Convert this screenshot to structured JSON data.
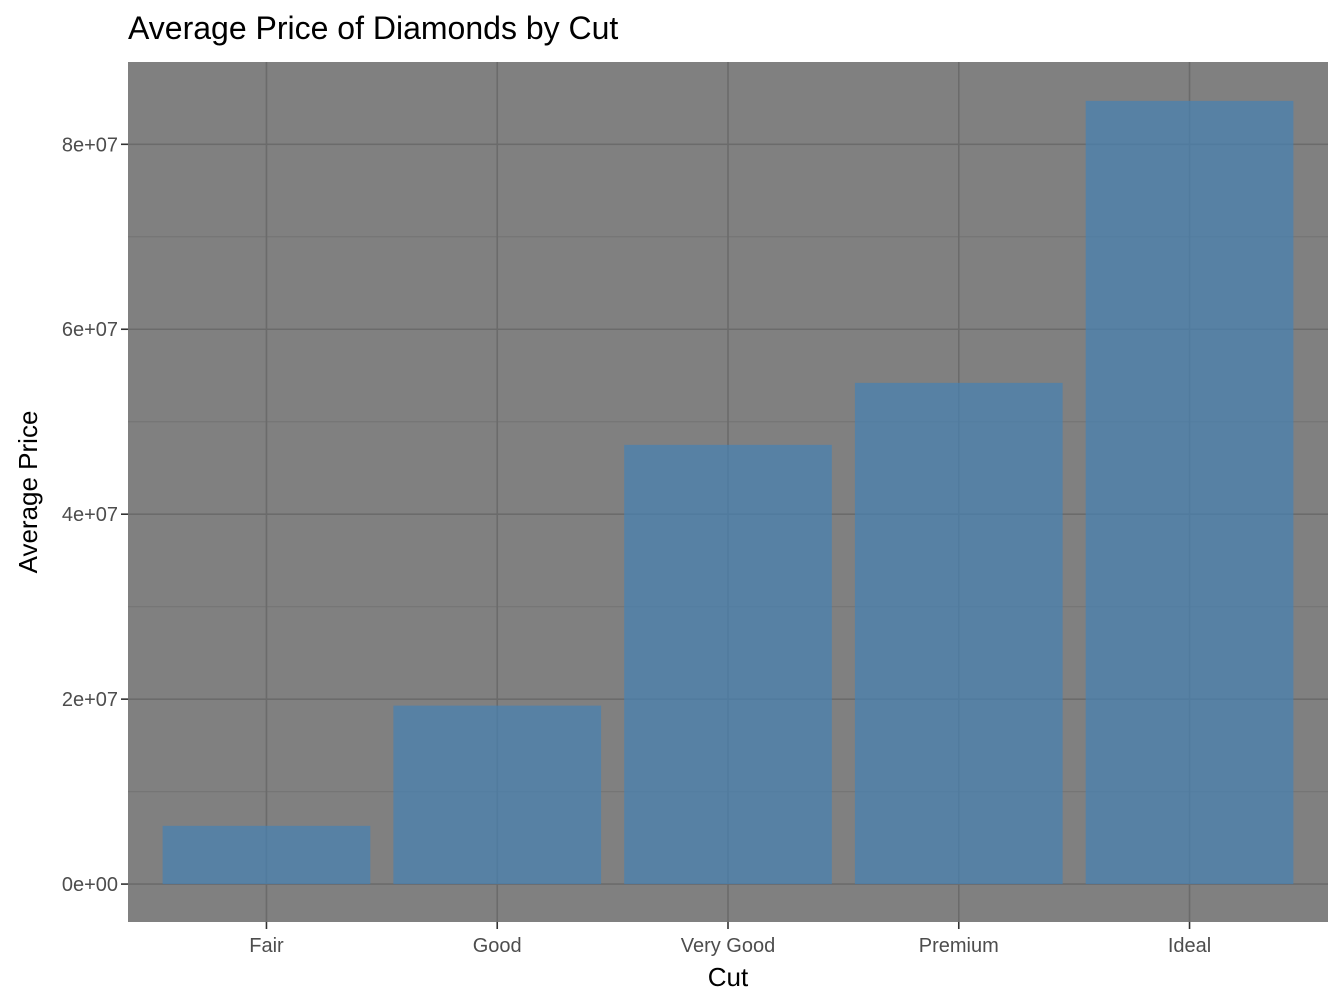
{
  "chart_data": {
    "type": "bar",
    "title": "Average Price of Diamonds by Cut",
    "xlabel": "Cut",
    "ylabel": "Average Price",
    "categories": [
      "Fair",
      "Good",
      "Very Good",
      "Premium",
      "Ideal"
    ],
    "values": [
      6300000,
      19300000,
      47500000,
      54200000,
      84700000
    ],
    "ylim": [
      -4100000,
      88900000
    ],
    "y_ticks": [
      0,
      20000000,
      40000000,
      60000000,
      80000000
    ],
    "y_tick_labels": [
      "0e+00",
      "2e+07",
      "4e+07",
      "6e+07",
      "8e+07"
    ],
    "grid": true,
    "legend": "none",
    "colors": {
      "panel_background": "#808080",
      "grid_major": "#6b6b6b",
      "grid_minor": "#757575",
      "bar_fill": "#4682b4",
      "bar_opacity": 0.7
    }
  }
}
